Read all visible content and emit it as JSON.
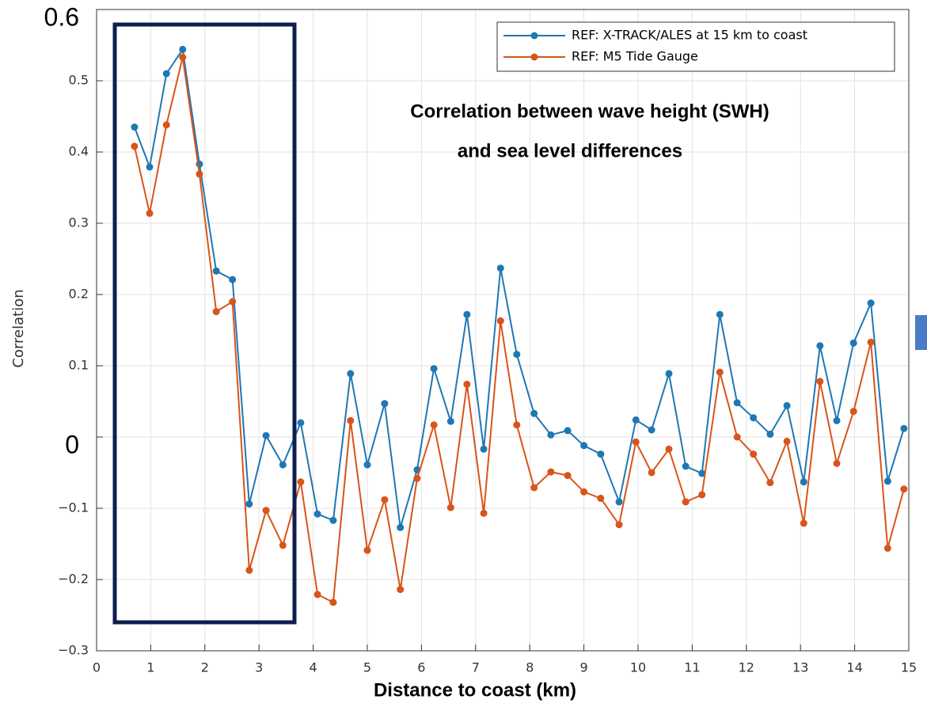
{
  "chart_data": {
    "type": "line",
    "annotation": [
      "Correlation between wave height (SWH)",
      "and sea level differences"
    ],
    "x_label": "Distance to coast (km)",
    "y_label": "Correlation",
    "x": [
      0.7,
      0.98,
      1.29,
      1.59,
      1.9,
      2.21,
      2.51,
      2.82,
      3.13,
      3.44,
      3.77,
      4.08,
      4.37,
      4.69,
      5.0,
      5.32,
      5.61,
      5.92,
      6.23,
      6.54,
      6.84,
      7.15,
      7.46,
      7.76,
      8.08,
      8.39,
      8.7,
      9.0,
      9.31,
      9.65,
      9.96,
      10.25,
      10.57,
      10.88,
      11.18,
      11.51,
      11.83,
      12.13,
      12.44,
      12.75,
      13.06,
      13.36,
      13.67,
      13.98,
      14.3,
      14.61,
      14.91
    ],
    "series": [
      {
        "name": "REF: X-TRACK/ALES at 15 km to coast",
        "color": "#1f77b4",
        "values": [
          0.435,
          0.379,
          0.51,
          0.544,
          0.383,
          0.233,
          0.221,
          -0.094,
          0.002,
          -0.039,
          0.02,
          -0.108,
          -0.117,
          0.089,
          -0.039,
          0.047,
          -0.127,
          -0.046,
          0.096,
          0.022,
          0.172,
          -0.017,
          0.237,
          0.116,
          0.033,
          0.003,
          0.009,
          -0.012,
          -0.024,
          -0.091,
          0.024,
          0.01,
          0.089,
          -0.041,
          -0.051,
          0.172,
          0.048,
          0.027,
          0.004,
          0.044,
          -0.063,
          0.128,
          0.023,
          0.132,
          0.188,
          -0.062,
          0.012
        ]
      },
      {
        "name": "REF: M5 Tide Gauge",
        "color": "#d9541a",
        "values": [
          0.408,
          0.314,
          0.438,
          0.533,
          0.369,
          0.176,
          0.19,
          -0.187,
          -0.103,
          -0.152,
          -0.063,
          -0.221,
          -0.232,
          0.023,
          -0.159,
          -0.088,
          -0.214,
          -0.058,
          0.017,
          -0.099,
          0.074,
          -0.107,
          0.163,
          0.017,
          -0.071,
          -0.049,
          -0.054,
          -0.077,
          -0.086,
          -0.123,
          -0.007,
          -0.05,
          -0.017,
          -0.091,
          -0.081,
          0.091,
          0.0,
          -0.024,
          -0.064,
          -0.006,
          -0.121,
          0.078,
          -0.037,
          0.036,
          0.133,
          -0.156,
          -0.073
        ]
      }
    ],
    "xlim": [
      0,
      15
    ],
    "xticks": [
      0,
      1,
      2,
      3,
      4,
      5,
      6,
      7,
      8,
      9,
      10,
      11,
      12,
      13,
      14,
      15
    ],
    "ylim": [
      -0.3,
      0.6
    ],
    "yticks": [
      {
        "value": -0.3,
        "label": "−0.3"
      },
      {
        "value": -0.2,
        "label": "−0.2"
      },
      {
        "value": -0.1,
        "label": "−0.1"
      },
      0,
      0.1,
      0.2,
      0.3,
      0.4,
      0.5,
      0.6
    ],
    "grid": true,
    "legend": "top-right"
  }
}
